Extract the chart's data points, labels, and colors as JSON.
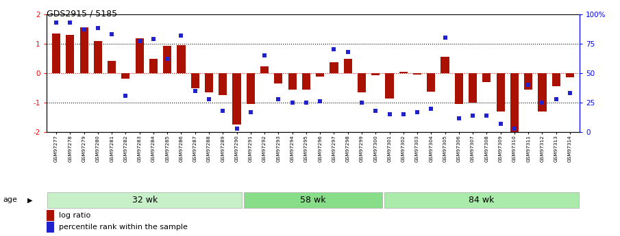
{
  "title": "GDS2915 / 5185",
  "samples": [
    "GSM97277",
    "GSM97278",
    "GSM97279",
    "GSM97280",
    "GSM97281",
    "GSM97282",
    "GSM97283",
    "GSM97284",
    "GSM97285",
    "GSM97286",
    "GSM97287",
    "GSM97288",
    "GSM97289",
    "GSM97290",
    "GSM97291",
    "GSM97292",
    "GSM97293",
    "GSM97294",
    "GSM97295",
    "GSM97296",
    "GSM97297",
    "GSM97298",
    "GSM97299",
    "GSM97300",
    "GSM97301",
    "GSM97302",
    "GSM97303",
    "GSM97304",
    "GSM97305",
    "GSM97306",
    "GSM97307",
    "GSM97308",
    "GSM97309",
    "GSM97310",
    "GSM97311",
    "GSM97312",
    "GSM97313",
    "GSM97314"
  ],
  "log_ratio": [
    1.35,
    1.3,
    1.55,
    1.1,
    0.42,
    -0.18,
    1.18,
    0.48,
    0.92,
    0.95,
    -0.5,
    -0.65,
    -0.75,
    -1.75,
    -1.05,
    0.22,
    -0.35,
    -0.55,
    -0.55,
    -0.12,
    0.38,
    0.48,
    -0.65,
    -0.07,
    -0.85,
    0.05,
    -0.05,
    -0.62,
    0.56,
    -1.05,
    -1.0,
    -0.3,
    -1.3,
    -2.05,
    -0.55,
    -1.3,
    -0.45,
    -0.15
  ],
  "percentile": [
    93,
    93,
    87,
    88,
    83,
    31,
    77,
    79,
    62,
    82,
    35,
    28,
    18,
    3,
    17,
    65,
    28,
    25,
    25,
    26,
    70,
    68,
    25,
    18,
    15,
    15,
    17,
    20,
    80,
    12,
    14,
    14,
    7,
    3,
    40,
    25,
    28,
    33
  ],
  "groups": [
    {
      "label": "32 wk",
      "start": 0,
      "end": 14
    },
    {
      "label": "58 wk",
      "start": 14,
      "end": 24
    },
    {
      "label": "84 wk",
      "start": 24,
      "end": 38
    }
  ],
  "group_colors": [
    "#c8f0c8",
    "#88dd88",
    "#aaeaaa"
  ],
  "bar_color": "#aa1100",
  "dot_color": "#2222cc",
  "ylim": [
    -2,
    2
  ],
  "yticks_left": [
    -2,
    -1,
    0,
    1,
    2
  ],
  "yticks_right": [
    0,
    25,
    50,
    75,
    100
  ],
  "hlines_black": [
    -1,
    1
  ],
  "legend_log_ratio": "log ratio",
  "legend_percentile": "percentile rank within the sample",
  "age_label": "age"
}
